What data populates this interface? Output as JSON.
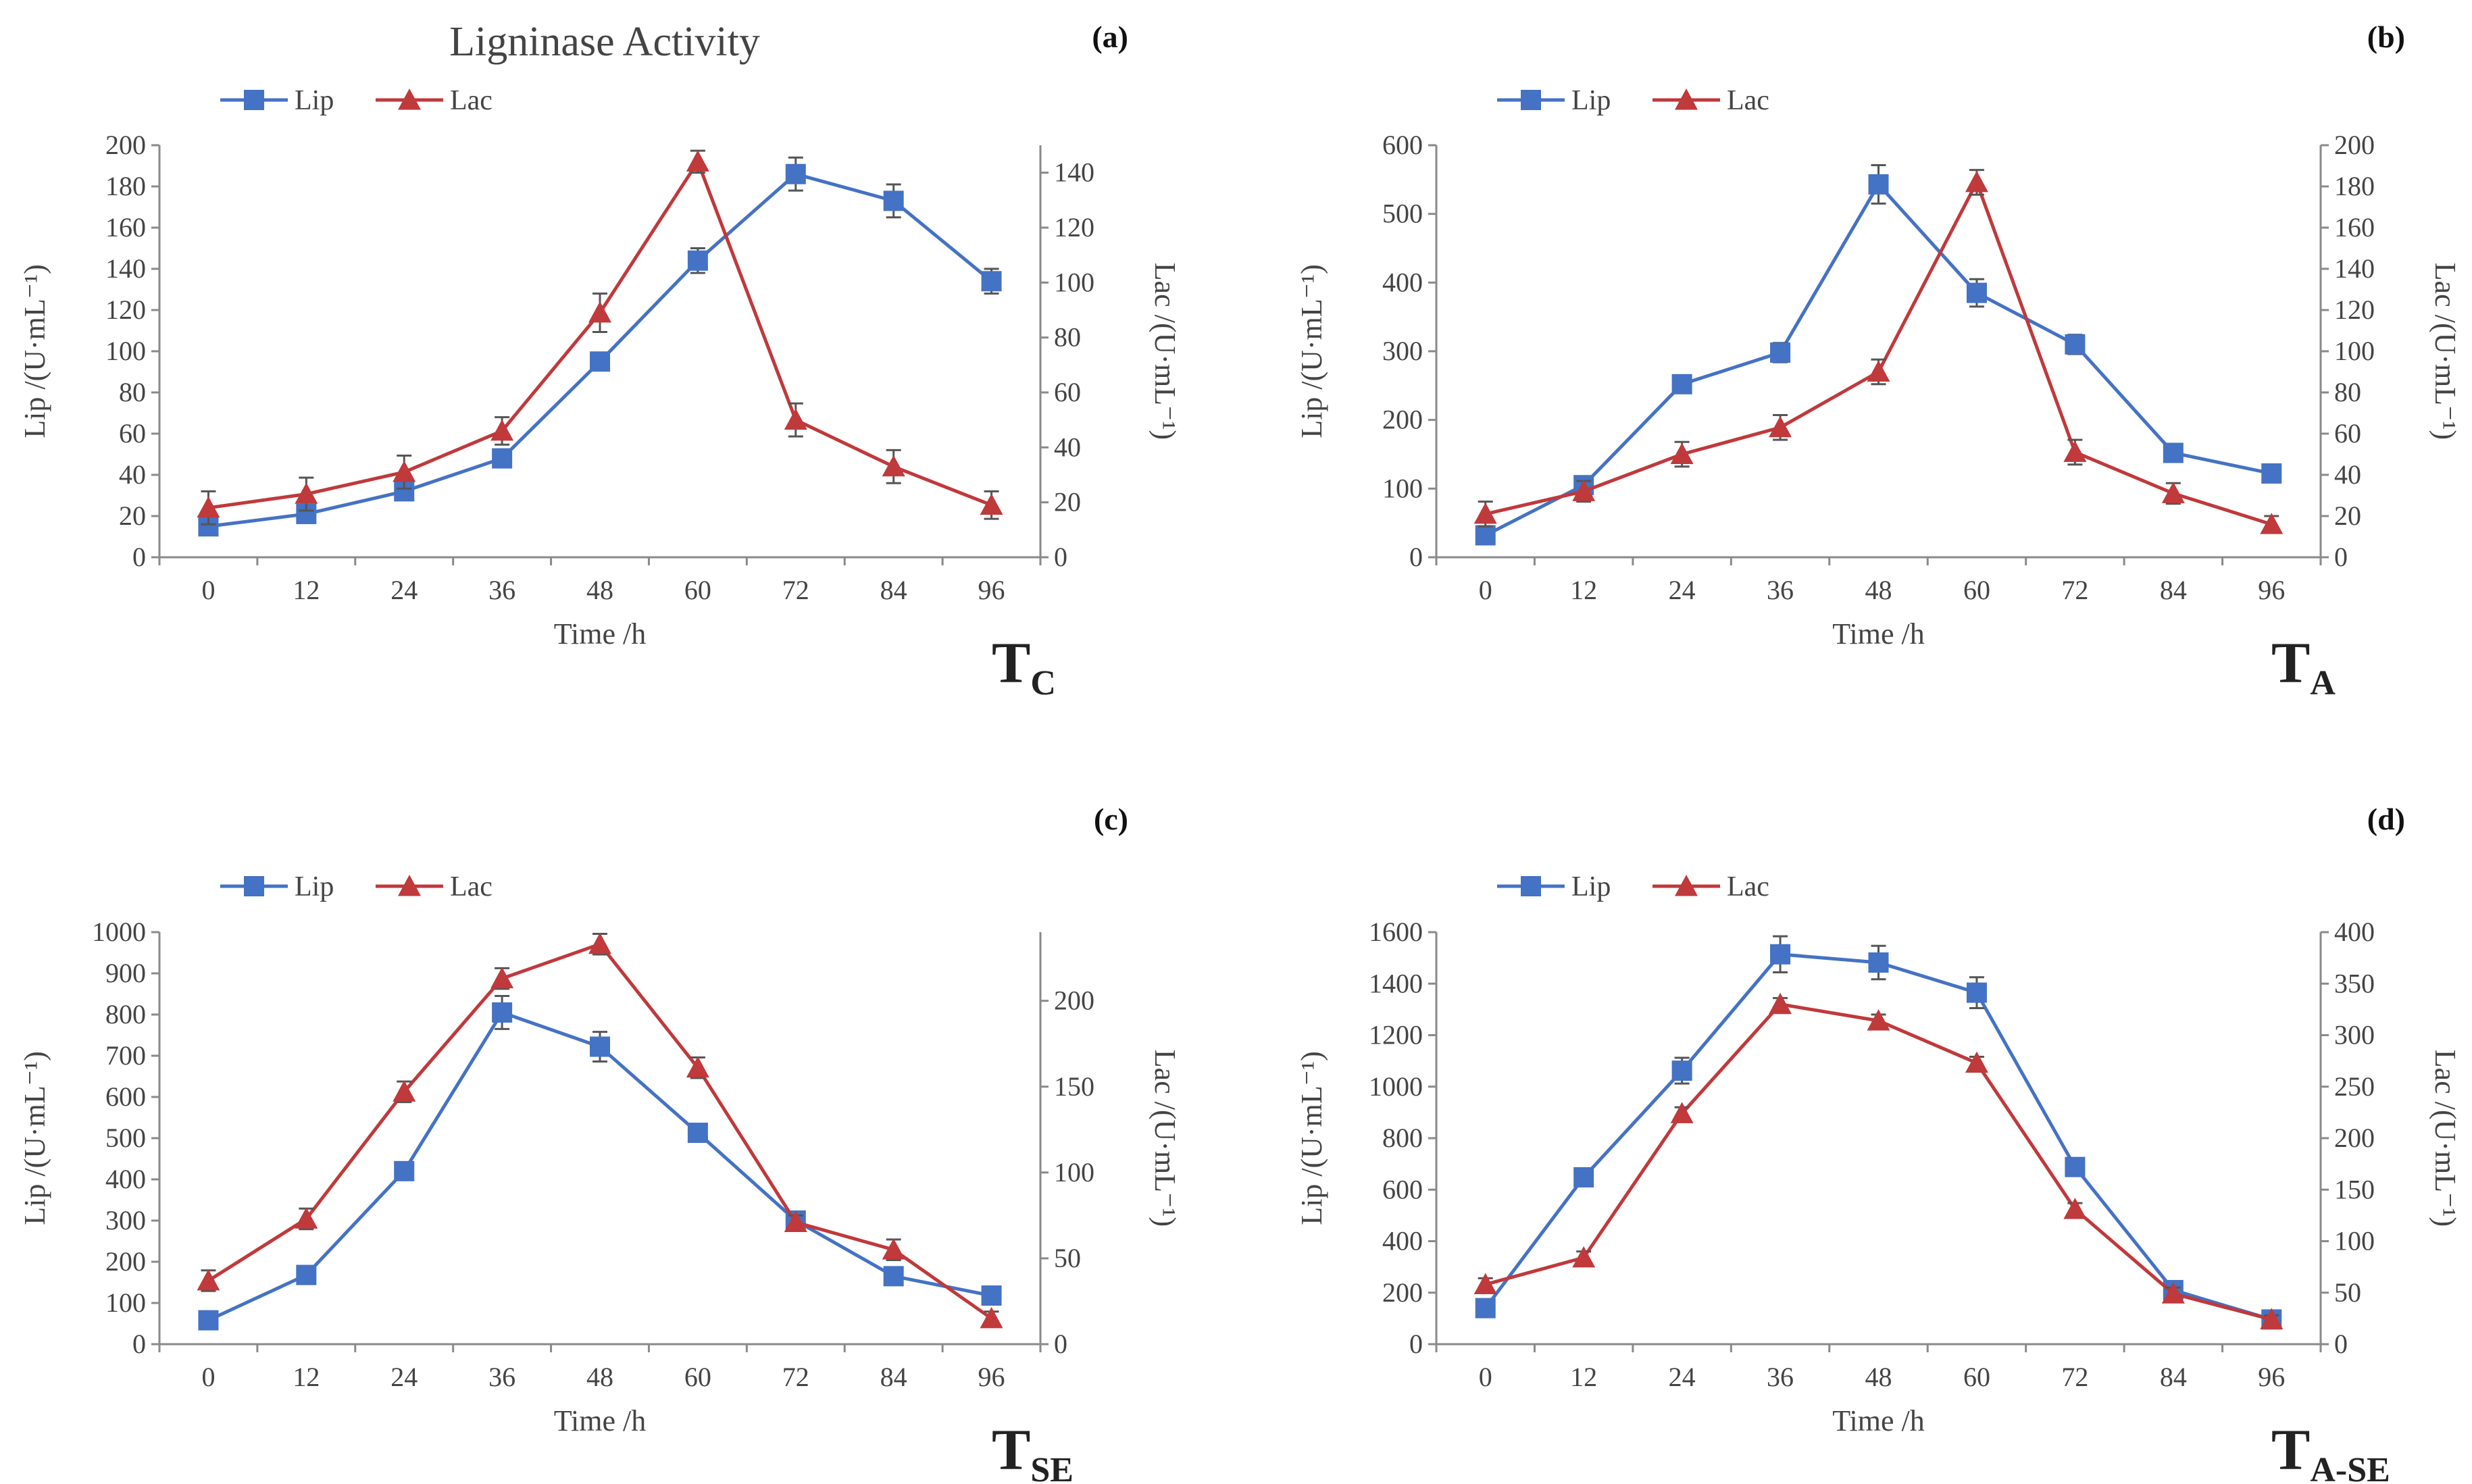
{
  "figure_title": "Ligninase Activity",
  "colors": {
    "lip": "#4472C4",
    "lac": "#C0393B",
    "axis": "#8a8a8a",
    "text": "#444444"
  },
  "chart_data": [
    {
      "panel": "(a)",
      "type": "line",
      "treatment": "T",
      "treatment_sub": "C",
      "title": "Ligninase Activity",
      "xlabel": "Time /h",
      "ylabel_left": "Lip /(U·mL⁻¹)",
      "ylabel_right": "Lac /(U·mL⁻¹)",
      "x": [
        0,
        12,
        24,
        36,
        48,
        60,
        72,
        84,
        96
      ],
      "ylim_left": [
        0,
        200
      ],
      "yticks_left": [
        0,
        20,
        40,
        60,
        80,
        100,
        120,
        140,
        160,
        180,
        200
      ],
      "ylim_right": [
        0,
        150
      ],
      "yticks_right": [
        0,
        20,
        40,
        60,
        80,
        100,
        120,
        140
      ],
      "series": [
        {
          "name": "Lip",
          "axis": "left",
          "marker": "square",
          "values": [
            15,
            21,
            32,
            48,
            95,
            144,
            186,
            173,
            134
          ],
          "errors": [
            3,
            3,
            3,
            4,
            4,
            6,
            8,
            8,
            6
          ]
        },
        {
          "name": "Lac",
          "axis": "right",
          "marker": "triangle",
          "values": [
            18,
            23,
            31,
            46,
            89,
            144,
            50,
            33,
            19
          ],
          "errors": [
            6,
            6,
            6,
            5,
            7,
            4,
            6,
            6,
            5
          ]
        }
      ]
    },
    {
      "panel": "(b)",
      "type": "line",
      "treatment": "T",
      "treatment_sub": "A",
      "xlabel": "Time /h",
      "ylabel_left": "Lip /(U·mL⁻¹)",
      "ylabel_right": "Lac /(U·mL⁻¹)",
      "x": [
        0,
        12,
        24,
        36,
        48,
        60,
        72,
        84,
        96
      ],
      "ylim_left": [
        0,
        600
      ],
      "yticks_left": [
        0,
        100,
        200,
        300,
        400,
        500,
        600
      ],
      "ylim_right": [
        0,
        200
      ],
      "yticks_right": [
        0,
        20,
        40,
        60,
        80,
        100,
        120,
        140,
        160,
        180,
        200
      ],
      "series": [
        {
          "name": "Lip",
          "axis": "left",
          "marker": "square",
          "values": [
            32,
            105,
            252,
            298,
            543,
            385,
            310,
            152,
            122
          ],
          "errors": [
            10,
            12,
            10,
            14,
            28,
            20,
            14,
            8,
            8
          ]
        },
        {
          "name": "Lac",
          "axis": "right",
          "marker": "triangle",
          "values": [
            21,
            32,
            50,
            63,
            90,
            182,
            51,
            31,
            16
          ],
          "errors": [
            6,
            5,
            6,
            6,
            6,
            6,
            6,
            5,
            4
          ]
        }
      ]
    },
    {
      "panel": "(c)",
      "type": "line",
      "treatment": "T",
      "treatment_sub": "SE",
      "xlabel": "Time /h",
      "ylabel_left": "Lip /(U·mL⁻¹)",
      "ylabel_right": "Lac /(U·mL⁻¹)",
      "x": [
        0,
        12,
        24,
        36,
        48,
        60,
        72,
        84,
        96
      ],
      "ylim_left": [
        0,
        1000
      ],
      "yticks_left": [
        0,
        100,
        200,
        300,
        400,
        500,
        600,
        700,
        800,
        900,
        1000
      ],
      "ylim_right": [
        0,
        240
      ],
      "yticks_right": [
        0,
        50,
        100,
        150,
        200
      ],
      "series": [
        {
          "name": "Lip",
          "axis": "left",
          "marker": "square",
          "values": [
            58,
            168,
            420,
            805,
            722,
            513,
            300,
            165,
            118
          ],
          "errors": [
            12,
            14,
            14,
            40,
            36,
            20,
            14,
            14,
            12
          ]
        },
        {
          "name": "Lac",
          "axis": "right",
          "marker": "triangle",
          "values": [
            37,
            73,
            147,
            213,
            233,
            161,
            71,
            55,
            15
          ],
          "errors": [
            6,
            6,
            6,
            6,
            6,
            6,
            4,
            6,
            4
          ]
        }
      ]
    },
    {
      "panel": "(d)",
      "type": "line",
      "treatment": "T",
      "treatment_sub": "A-SE",
      "xlabel": "Time /h",
      "ylabel_left": "Lip /(U·mL⁻¹)",
      "ylabel_right": "Lac /(U·mL⁻¹)",
      "x": [
        0,
        12,
        24,
        36,
        48,
        60,
        72,
        84,
        96
      ],
      "ylim_left": [
        0,
        1600
      ],
      "yticks_left": [
        0,
        200,
        400,
        600,
        800,
        1000,
        1200,
        1400,
        1600
      ],
      "ylim_right": [
        0,
        400
      ],
      "yticks_right": [
        0,
        50,
        100,
        150,
        200,
        250,
        300,
        350,
        400
      ],
      "series": [
        {
          "name": "Lip",
          "axis": "left",
          "marker": "square",
          "values": [
            140,
            648,
            1062,
            1514,
            1482,
            1365,
            688,
            210,
            96
          ],
          "errors": [
            20,
            25,
            50,
            70,
            65,
            60,
            25,
            20,
            12
          ]
        },
        {
          "name": "Lac",
          "axis": "right",
          "marker": "triangle",
          "values": [
            58,
            84,
            224,
            330,
            314,
            273,
            131,
            49,
            24
          ],
          "errors": [
            6,
            6,
            6,
            6,
            6,
            6,
            6,
            6,
            4
          ]
        }
      ]
    }
  ]
}
